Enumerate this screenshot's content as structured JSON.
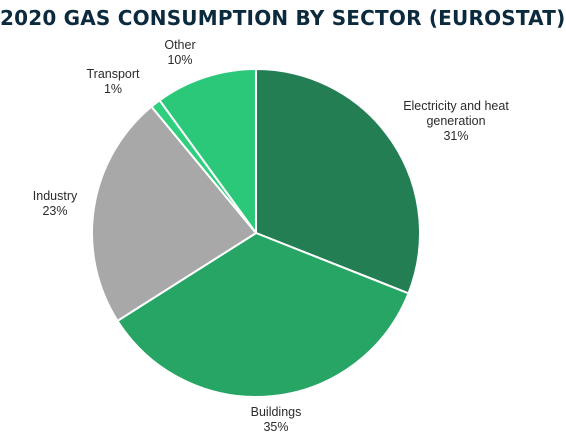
{
  "chart_data": {
    "type": "pie",
    "title": "2020 GAS CONSUMPTION BY SECTOR (EUROSTAT)",
    "slices": [
      {
        "label": [
          "Electricity and heat",
          "generation"
        ],
        "percent_label": "31%",
        "value": 31,
        "color": "#237f53"
      },
      {
        "label": [
          "Buildings"
        ],
        "percent_label": "35%",
        "value": 35,
        "color": "#27a564"
      },
      {
        "label": [
          "Industry"
        ],
        "percent_label": "23%",
        "value": 23,
        "color": "#a8a8a8"
      },
      {
        "label": [
          "Transport"
        ],
        "percent_label": "1%",
        "value": 1,
        "color": "#2fd07d"
      },
      {
        "label": [
          "Other"
        ],
        "percent_label": "10%",
        "value": 10,
        "color": "#2cc87a"
      }
    ]
  }
}
